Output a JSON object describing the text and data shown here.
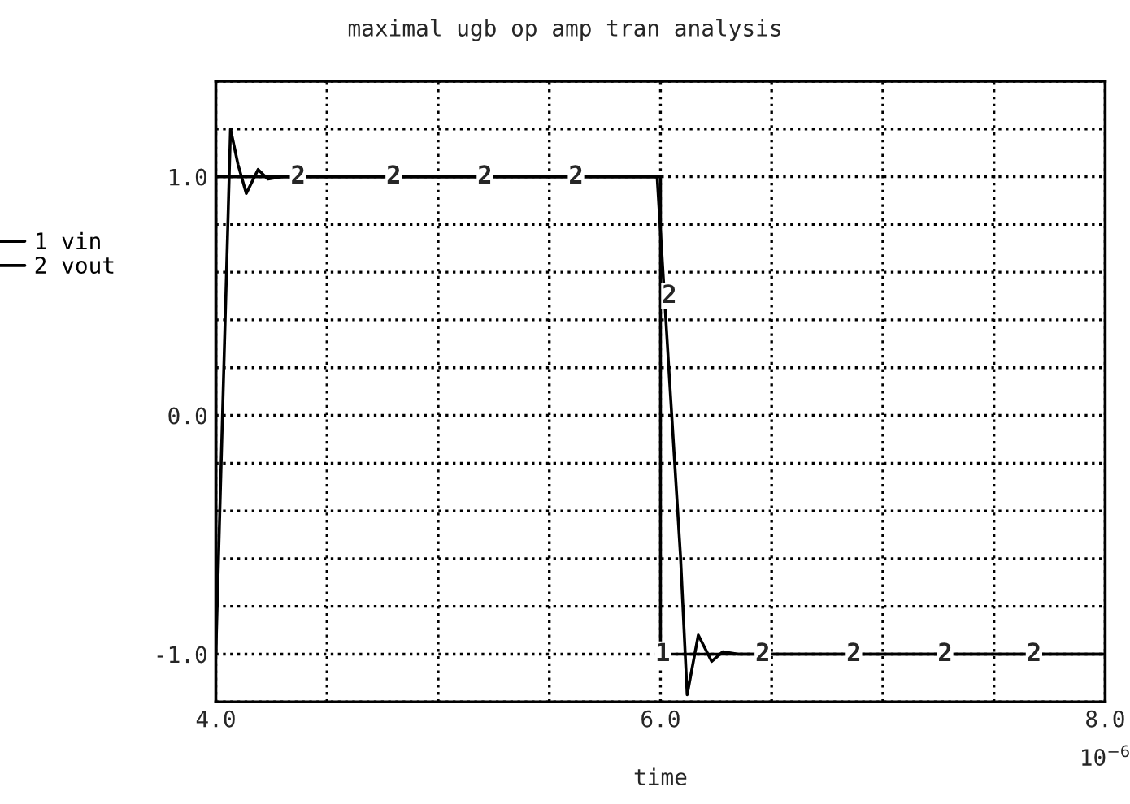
{
  "chart_data": {
    "type": "line",
    "title": "maximal ugb op amp tran analysis",
    "xlabel": "time",
    "xlim": [
      4.0,
      8.0
    ],
    "ylim": [
      -1.2,
      1.4
    ],
    "xticks": [
      {
        "value": 4.0,
        "label": "4.0"
      },
      {
        "value": 4.5,
        "label": null
      },
      {
        "value": 5.0,
        "label": null
      },
      {
        "value": 5.5,
        "label": null
      },
      {
        "value": 6.0,
        "label": "6.0"
      },
      {
        "value": 6.5,
        "label": null
      },
      {
        "value": 7.0,
        "label": null
      },
      {
        "value": 7.5,
        "label": null
      },
      {
        "value": 8.0,
        "label": "8.0"
      }
    ],
    "yticks": [
      {
        "value": -1.2,
        "label": null
      },
      {
        "value": -1.0,
        "label": "-1.0"
      },
      {
        "value": -0.8,
        "label": null
      },
      {
        "value": -0.6,
        "label": null
      },
      {
        "value": -0.4,
        "label": null
      },
      {
        "value": -0.2,
        "label": null
      },
      {
        "value": 0.0,
        "label": "0.0"
      },
      {
        "value": 0.2,
        "label": null
      },
      {
        "value": 0.4,
        "label": null
      },
      {
        "value": 0.6,
        "label": null
      },
      {
        "value": 0.8,
        "label": null
      },
      {
        "value": 1.0,
        "label": "1.0"
      },
      {
        "value": 1.2,
        "label": null
      },
      {
        "value": 1.4,
        "label": null
      }
    ],
    "grid": true,
    "legend": "left",
    "line_style": "solid",
    "marker": "none",
    "series": [
      {
        "name": "1 vin",
        "color": "#000000",
        "x": [
          4.0,
          4.0,
          6.0,
          6.0,
          8.0
        ],
        "values": [
          -1.0,
          1.0,
          1.0,
          -1.0,
          -1.0
        ]
      },
      {
        "name": "2 vout",
        "color": "#000000",
        "x": [
          4.0,
          4.03,
          4.066,
          4.1,
          4.137,
          4.19,
          4.234,
          4.3,
          5.985,
          6.04,
          6.09,
          6.12,
          6.17,
          6.23,
          6.28,
          6.35,
          8.0
        ],
        "values": [
          -1.0,
          0.0,
          1.2,
          1.05,
          0.93,
          1.03,
          0.99,
          1.0,
          1.0,
          0.16,
          -0.59,
          -1.17,
          -0.92,
          -1.03,
          -0.99,
          -1.0,
          -1.0
        ]
      }
    ],
    "annotations": [
      {
        "text": "2",
        "x": 4.37,
        "y": 1.0
      },
      {
        "text": "2",
        "x": 4.8,
        "y": 1.0
      },
      {
        "text": "2",
        "x": 5.21,
        "y": 1.0
      },
      {
        "text": "2",
        "x": 5.62,
        "y": 1.0
      },
      {
        "text": "2",
        "x": 6.04,
        "y": 0.5
      },
      {
        "text": "1",
        "x": 6.01,
        "y": -1.0
      },
      {
        "text": "2",
        "x": 6.46,
        "y": -1.0
      },
      {
        "text": "2",
        "x": 6.87,
        "y": -1.0
      },
      {
        "text": "2",
        "x": 7.28,
        "y": -1.0
      },
      {
        "text": "2",
        "x": 7.68,
        "y": -1.0
      },
      "10$^{−6}$"
    ]
  }
}
